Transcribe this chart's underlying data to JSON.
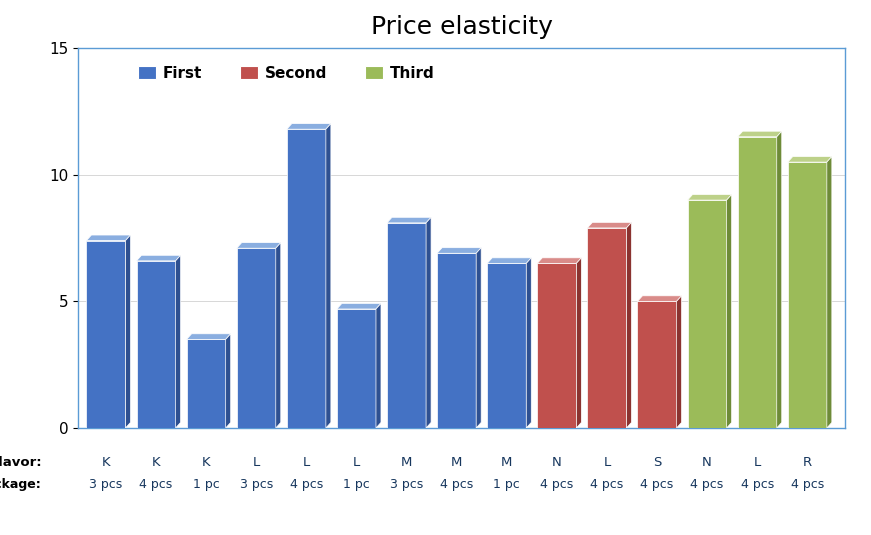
{
  "title": "Price elasticity",
  "values": [
    7.4,
    6.6,
    3.5,
    7.1,
    11.8,
    4.7,
    8.1,
    6.9,
    6.5,
    6.5,
    7.9,
    5.0,
    9.0,
    11.5,
    10.5
  ],
  "flavors": [
    "K",
    "K",
    "K",
    "L",
    "L",
    "L",
    "M",
    "M",
    "M",
    "N",
    "L",
    "S",
    "N",
    "L",
    "R"
  ],
  "packages": [
    "3 pcs",
    "4 pcs",
    "1 pc",
    "3 pcs",
    "4 pcs",
    "1 pc",
    "3 pcs",
    "4 pcs",
    "1 pc",
    "4 pcs",
    "4 pcs",
    "4 pcs",
    "4 pcs",
    "4 pcs",
    "4 pcs"
  ],
  "groups": [
    "First",
    "First",
    "First",
    "First",
    "First",
    "First",
    "First",
    "First",
    "First",
    "Second",
    "Second",
    "Second",
    "Third",
    "Third",
    "Third"
  ],
  "group_colors": {
    "First": "#4472C4",
    "Second": "#C0504D",
    "Third": "#9BBB59"
  },
  "group_light_colors": {
    "First": "#8aaee0",
    "Second": "#d98b89",
    "Third": "#bdd189"
  },
  "group_dark_colors": {
    "First": "#2e5091",
    "Second": "#8b3330",
    "Third": "#6e8b38"
  },
  "ylim": [
    0,
    15
  ],
  "yticks": [
    0,
    5,
    10,
    15
  ],
  "title_fontsize": 18,
  "legend_entries": [
    "First",
    "Second",
    "Third"
  ],
  "background_color": "#FFFFFF",
  "plot_bg_color": "#FFFFFF",
  "label_flavor": "Flavor:",
  "label_package": "Package:",
  "spine_color": "#5B9BD5",
  "tick_label_color": "#1F3864",
  "bottom_label_color": "#17375E"
}
